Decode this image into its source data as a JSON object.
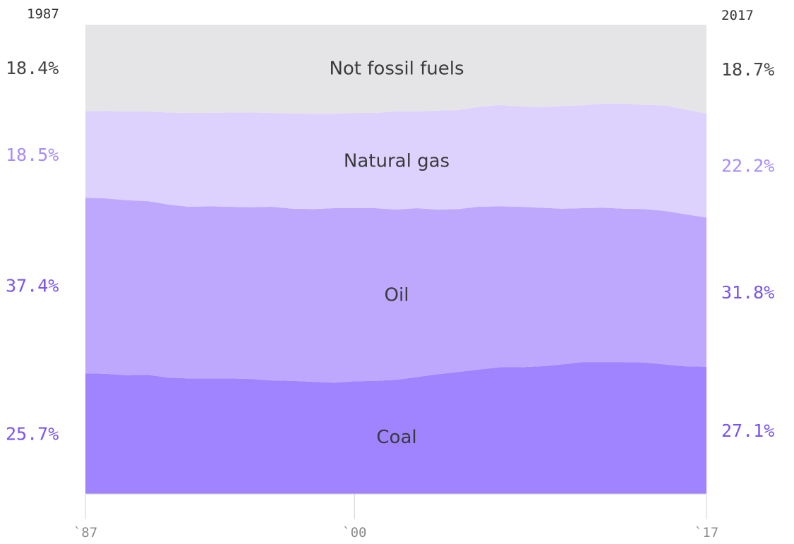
{
  "chart_data": {
    "type": "area",
    "stacked": true,
    "normalized_percent": true,
    "start_year_label": "1987",
    "end_year_label": "2017",
    "x_years": [
      1987,
      1988,
      1989,
      1990,
      1991,
      1992,
      1993,
      1994,
      1995,
      1996,
      1997,
      1998,
      1999,
      2000,
      2001,
      2002,
      2003,
      2004,
      2005,
      2006,
      2007,
      2008,
      2009,
      2010,
      2011,
      2012,
      2013,
      2014,
      2015,
      2016,
      2017
    ],
    "x_ticks": [
      {
        "year": 1987,
        "label": "`87"
      },
      {
        "year": 2000,
        "label": "`00"
      },
      {
        "year": 2017,
        "label": "`17"
      }
    ],
    "series": [
      {
        "name": "Coal",
        "color": "#a083fe",
        "label_color": "#7a52f4",
        "start_label": "25.7%",
        "end_label": "27.1%",
        "values": [
          25.7,
          25.6,
          25.3,
          25.4,
          24.8,
          24.6,
          24.6,
          24.6,
          24.5,
          24.2,
          24.1,
          23.9,
          23.7,
          24.0,
          24.1,
          24.3,
          24.9,
          25.5,
          26.0,
          26.5,
          27.0,
          27.0,
          27.2,
          27.6,
          28.1,
          28.1,
          28.1,
          28.0,
          27.6,
          27.2,
          27.1
        ]
      },
      {
        "name": "Oil",
        "color": "#bea8fe",
        "label_color": "#7a52f4",
        "start_label": "37.4%",
        "end_label": "31.8%",
        "values": [
          37.4,
          37.4,
          37.3,
          37.0,
          36.9,
          36.6,
          36.7,
          36.6,
          36.6,
          37.0,
          36.7,
          36.8,
          37.2,
          36.9,
          36.8,
          36.3,
          36.0,
          35.1,
          34.7,
          34.7,
          34.3,
          34.2,
          33.8,
          33.2,
          32.8,
          32.9,
          32.7,
          32.7,
          32.7,
          32.4,
          31.8
        ]
      },
      {
        "name": "Natural gas",
        "color": "#ddd2fe",
        "label_color": "#a88cfc",
        "start_label": "18.5%",
        "end_label": "22.2%",
        "values": [
          18.5,
          18.6,
          18.9,
          19.1,
          19.6,
          20.0,
          19.9,
          20.1,
          20.2,
          20.0,
          20.3,
          20.3,
          20.1,
          20.3,
          20.3,
          20.9,
          20.6,
          21.1,
          21.1,
          21.3,
          21.6,
          21.4,
          21.4,
          21.9,
          21.9,
          22.2,
          22.4,
          22.2,
          22.5,
          22.3,
          22.2
        ]
      },
      {
        "name": "Not fossil fuels",
        "color": "#e5e5e8",
        "label_color": "#444444",
        "start_label": "18.4%",
        "end_label": "18.7%",
        "values": [
          18.4,
          18.4,
          18.5,
          18.5,
          18.7,
          18.8,
          18.8,
          18.7,
          18.7,
          18.8,
          18.9,
          19.0,
          19.0,
          18.8,
          18.8,
          18.5,
          18.5,
          18.3,
          18.2,
          17.9,
          17.6,
          17.7,
          17.6,
          17.3,
          17.2,
          17.1,
          16.8,
          17.1,
          17.2,
          18.1,
          18.7
        ]
      }
    ],
    "ylim": [
      0,
      100
    ],
    "grid": false,
    "legend": "inline labels"
  }
}
